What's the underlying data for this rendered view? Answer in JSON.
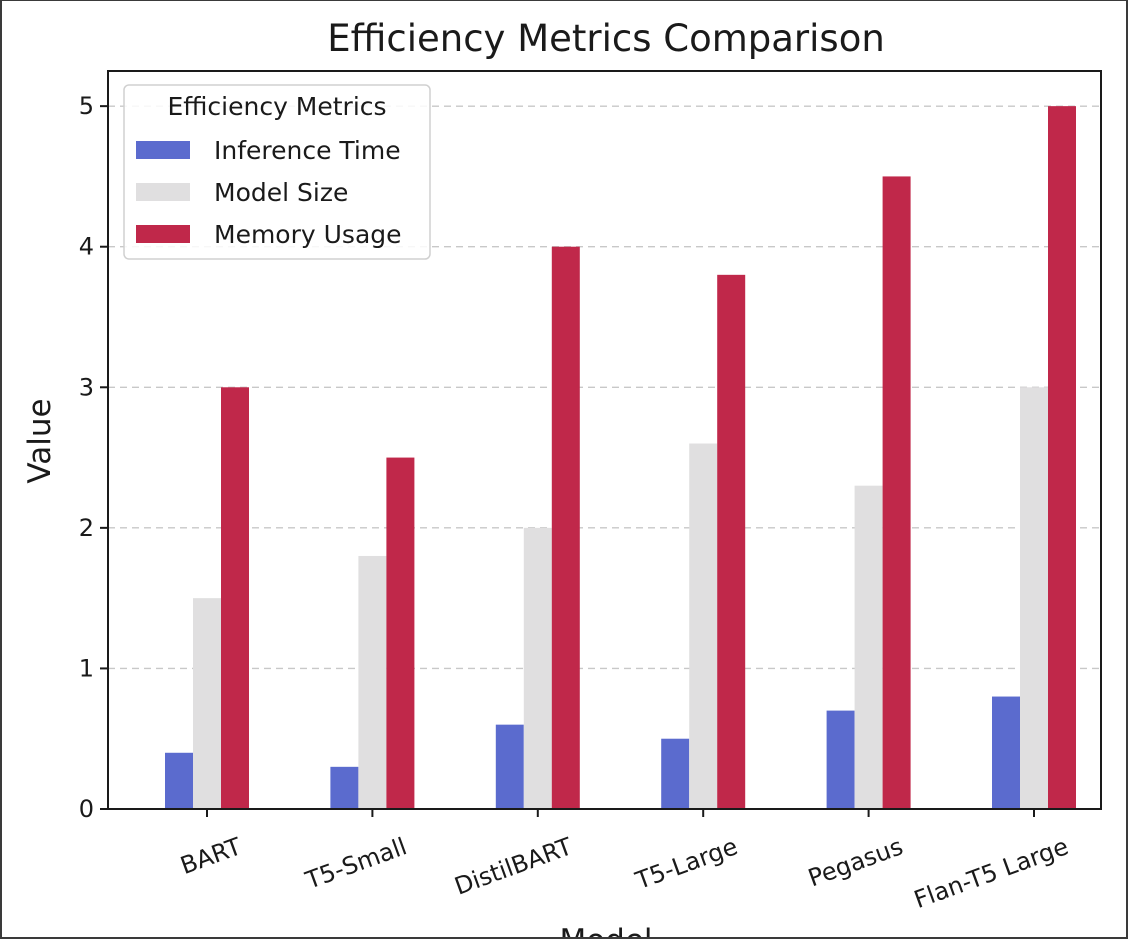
{
  "chart_data": {
    "type": "bar",
    "title": "Efficiency Metrics Comparison",
    "xlabel": "Model",
    "ylabel": "Value",
    "categories": [
      "BART",
      "T5-Small",
      "DistilBART",
      "T5-Large",
      "Pegasus",
      "Flan-T5 Large"
    ],
    "series": [
      {
        "name": "Inference Time",
        "color": "#5b6bce",
        "values": [
          0.4,
          0.3,
          0.6,
          0.5,
          0.7,
          0.8
        ]
      },
      {
        "name": "Model Size",
        "color": "#e0dfe0",
        "values": [
          1.5,
          1.8,
          2.0,
          2.6,
          2.3,
          3.0
        ]
      },
      {
        "name": "Memory Usage",
        "color": "#c0284a",
        "values": [
          3.0,
          2.5,
          4.0,
          3.8,
          4.5,
          5.0
        ]
      }
    ],
    "ylim": [
      0,
      5.25
    ],
    "yticks": [
      "0",
      "1",
      "2",
      "3",
      "4",
      "5"
    ],
    "grid": "y-dashed",
    "legend": {
      "title": "Efficiency Metrics",
      "placement": "top-left"
    }
  }
}
